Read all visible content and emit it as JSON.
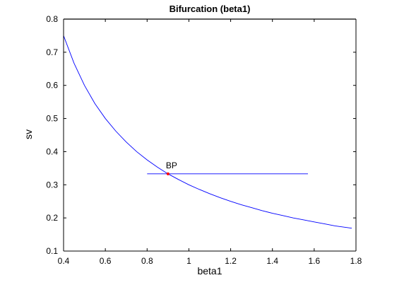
{
  "chart_data": {
    "type": "line",
    "title": "Bifurcation (beta1)",
    "xlabel": "beta1",
    "ylabel": "sv",
    "xlim": [
      0.4,
      1.8
    ],
    "ylim": [
      0.1,
      0.8
    ],
    "xticks": [
      "0.4",
      "0.6",
      "0.8",
      "1",
      "1.2",
      "1.4",
      "1.6",
      "1.8"
    ],
    "yticks": [
      "0.1",
      "0.2",
      "0.3",
      "0.4",
      "0.5",
      "0.6",
      "0.7",
      "0.8"
    ],
    "grid": false,
    "series": [
      {
        "color": "#0000ff",
        "x": [
          0.4,
          0.45,
          0.5,
          0.55,
          0.6,
          0.65,
          0.7,
          0.75,
          0.8,
          0.85,
          0.9,
          0.95,
          1.0,
          1.05,
          1.1,
          1.15,
          1.2,
          1.25,
          1.3,
          1.35,
          1.4,
          1.45,
          1.5,
          1.55,
          1.6,
          1.65,
          1.7,
          1.78
        ],
        "y": [
          0.75,
          0.667,
          0.6,
          0.545,
          0.5,
          0.462,
          0.429,
          0.4,
          0.375,
          0.353,
          0.333,
          0.316,
          0.3,
          0.286,
          0.273,
          0.261,
          0.25,
          0.24,
          0.231,
          0.222,
          0.214,
          0.207,
          0.2,
          0.194,
          0.188,
          0.182,
          0.176,
          0.169
        ]
      },
      {
        "color": "#0000ff",
        "x": [
          0.8,
          1.57
        ],
        "y": [
          0.333,
          0.333
        ]
      }
    ],
    "annotations": [
      {
        "text": "BP",
        "x": 0.9,
        "y": 0.333,
        "marker_color": "#ff0000"
      }
    ]
  }
}
